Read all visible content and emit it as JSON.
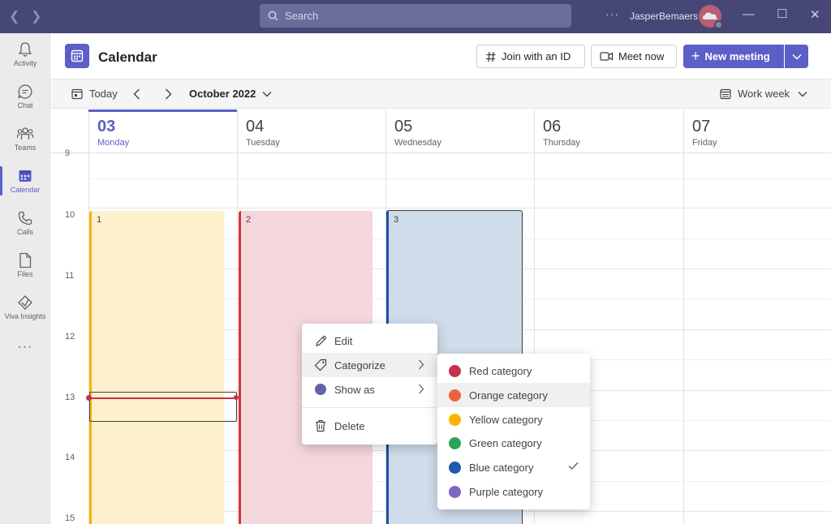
{
  "titlebar": {
    "search_placeholder": "Search",
    "more": "···",
    "user_name": "JasperBemaers"
  },
  "rail": {
    "items": [
      {
        "label": "Activity",
        "icon": "bell-icon"
      },
      {
        "label": "Chat",
        "icon": "chat-icon"
      },
      {
        "label": "Teams",
        "icon": "teams-icon"
      },
      {
        "label": "Calendar",
        "icon": "calendar-icon",
        "active": true
      },
      {
        "label": "Calls",
        "icon": "phone-icon"
      },
      {
        "label": "Files",
        "icon": "file-icon"
      },
      {
        "label": "Viva Insights",
        "icon": "viva-insights-icon"
      }
    ],
    "more": "···"
  },
  "header": {
    "title": "Calendar",
    "join_id": "Join with an ID",
    "meet_now": "Meet now",
    "new_meeting": "New meeting",
    "accent": "#5b5fc7"
  },
  "toolbar": {
    "today": "Today",
    "month": "October 2022",
    "view": "Work week"
  },
  "days": [
    {
      "num": "03",
      "name": "Monday",
      "today": true
    },
    {
      "num": "04",
      "name": "Tuesday"
    },
    {
      "num": "05",
      "name": "Wednesday"
    },
    {
      "num": "06",
      "name": "Thursday"
    },
    {
      "num": "07",
      "name": "Friday"
    }
  ],
  "hours": [
    "9",
    "10",
    "11",
    "12",
    "13",
    "14",
    "15"
  ],
  "events": [
    {
      "label": "1",
      "color": "#f2b600"
    },
    {
      "label": "2",
      "color": "#d13438"
    },
    {
      "label": "3",
      "color": "#1e4ea0"
    }
  ],
  "context_menu": {
    "edit": "Edit",
    "categorize": "Categorize",
    "show_as": "Show as",
    "delete": "Delete"
  },
  "categories": [
    {
      "label": "Red category",
      "color": "#c4314b"
    },
    {
      "label": "Orange category",
      "color": "#e8643c"
    },
    {
      "label": "Yellow category",
      "color": "#f8b600"
    },
    {
      "label": "Green category",
      "color": "#29a35c"
    },
    {
      "label": "Blue category",
      "color": "#1d5aa8",
      "checked": true
    },
    {
      "label": "Purple category",
      "color": "#7e67c2"
    }
  ]
}
